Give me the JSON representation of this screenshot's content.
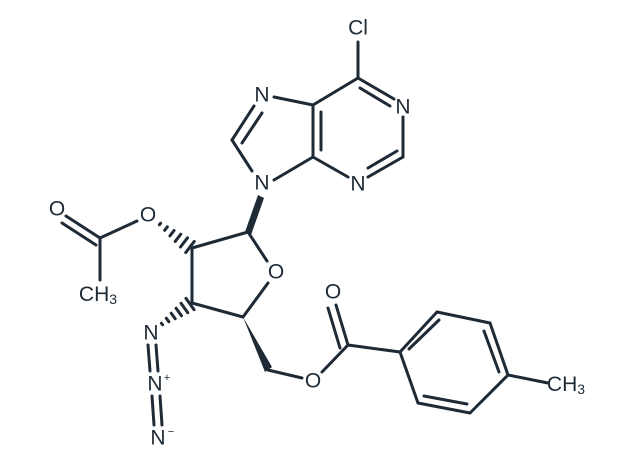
{
  "atoms": [
    {
      "label": "Cl"
    },
    {
      "label": "N"
    },
    {
      "label": "N"
    },
    {
      "label": "N"
    },
    {
      "label": "N"
    },
    {
      "label": "O"
    },
    {
      "label": "O"
    },
    {
      "label": "O"
    },
    {
      "label": "CH",
      "sub": "3"
    },
    {
      "label": "N"
    },
    {
      "label": "N",
      "charge": "+"
    },
    {
      "label": "N",
      "charge": "−"
    },
    {
      "label": "O"
    },
    {
      "label": "O"
    },
    {
      "label": "CH",
      "sub": "3"
    }
  ]
}
